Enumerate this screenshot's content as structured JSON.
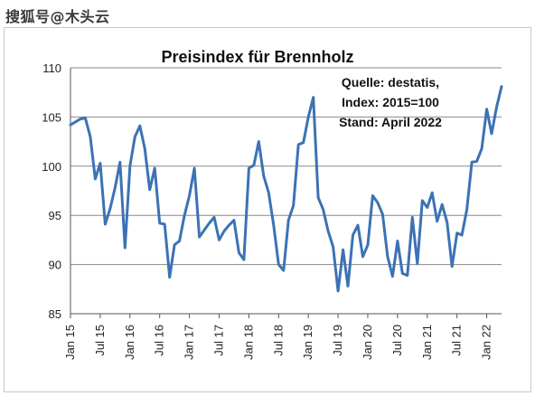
{
  "watermark": "搜狐号@木头云",
  "chart_data": {
    "type": "line",
    "title": "Preisindex für Brennholz",
    "annotations": [
      "Quelle: destatis,",
      "Index: 2015=100",
      "Stand: April 2022"
    ],
    "xlabel": "",
    "ylabel": "",
    "ylim": [
      85,
      110
    ],
    "yticks": [
      85,
      90,
      95,
      100,
      105,
      110
    ],
    "grid": "horizontal",
    "legend": "none",
    "line_color": "#3c72b5",
    "x_tick_labels": [
      "Jan 15",
      "Jul 15",
      "Jan 16",
      "Jul 16",
      "Jan 17",
      "Jul 17",
      "Jan 18",
      "Jul 18",
      "Jan 19",
      "Jul 19",
      "Jan 20",
      "Jul 20",
      "Jan 21",
      "Jul 21",
      "Jan 22"
    ],
    "x": [
      "Jan 15",
      "Feb 15",
      "Mar 15",
      "Apr 15",
      "May 15",
      "Jun 15",
      "Jul 15",
      "Aug 15",
      "Sep 15",
      "Oct 15",
      "Nov 15",
      "Dec 15",
      "Jan 16",
      "Feb 16",
      "Mar 16",
      "Apr 16",
      "May 16",
      "Jun 16",
      "Jul 16",
      "Aug 16",
      "Sep 16",
      "Oct 16",
      "Nov 16",
      "Dec 16",
      "Jan 17",
      "Feb 17",
      "Mar 17",
      "Apr 17",
      "May 17",
      "Jun 17",
      "Jul 17",
      "Aug 17",
      "Sep 17",
      "Oct 17",
      "Nov 17",
      "Dec 17",
      "Jan 18",
      "Feb 18",
      "Mar 18",
      "Apr 18",
      "May 18",
      "Jun 18",
      "Jul 18",
      "Aug 18",
      "Sep 18",
      "Oct 18",
      "Nov 18",
      "Dec 18",
      "Jan 19",
      "Feb 19",
      "Mar 19",
      "Apr 19",
      "May 19",
      "Jun 19",
      "Jul 19",
      "Aug 19",
      "Sep 19",
      "Oct 19",
      "Nov 19",
      "Dec 19",
      "Jan 20",
      "Feb 20",
      "Mar 20",
      "Apr 20",
      "May 20",
      "Jun 20",
      "Jul 20",
      "Aug 20",
      "Sep 20",
      "Oct 20",
      "Nov 20",
      "Dec 20",
      "Jan 21",
      "Feb 21",
      "Mar 21",
      "Apr 21",
      "May 21",
      "Jun 21",
      "Jul 21",
      "Aug 21",
      "Sep 21",
      "Oct 21",
      "Nov 21",
      "Dec 21",
      "Jan 22",
      "Feb 22",
      "Mar 22",
      "Apr 22"
    ],
    "values": [
      104.2,
      104.5,
      104.8,
      104.9,
      103.0,
      98.7,
      100.3,
      94.1,
      95.7,
      97.8,
      100.4,
      91.7,
      100.0,
      103.0,
      104.1,
      101.8,
      97.6,
      99.8,
      94.2,
      94.1,
      88.7,
      92.0,
      92.4,
      95.0,
      97.0,
      99.8,
      92.8,
      93.5,
      94.2,
      94.8,
      92.5,
      93.4,
      94.0,
      94.5,
      91.2,
      90.5,
      99.8,
      100.1,
      102.5,
      99.0,
      97.3,
      94.0,
      90.0,
      89.4,
      94.5,
      96.0,
      102.2,
      102.4,
      105.0,
      107.0,
      96.8,
      95.6,
      93.4,
      91.8,
      87.3,
      91.5,
      87.8,
      93.0,
      94.0,
      90.8,
      92.0,
      97.0,
      96.3,
      95.1,
      90.8,
      88.8,
      92.4,
      89.1,
      88.9,
      94.8,
      90.1,
      96.5,
      95.8,
      97.3,
      94.4,
      96.1,
      94.3,
      89.8,
      93.2,
      93.0,
      95.6,
      100.4,
      100.5,
      101.8,
      105.8,
      103.3,
      106.0,
      108.1
    ]
  }
}
